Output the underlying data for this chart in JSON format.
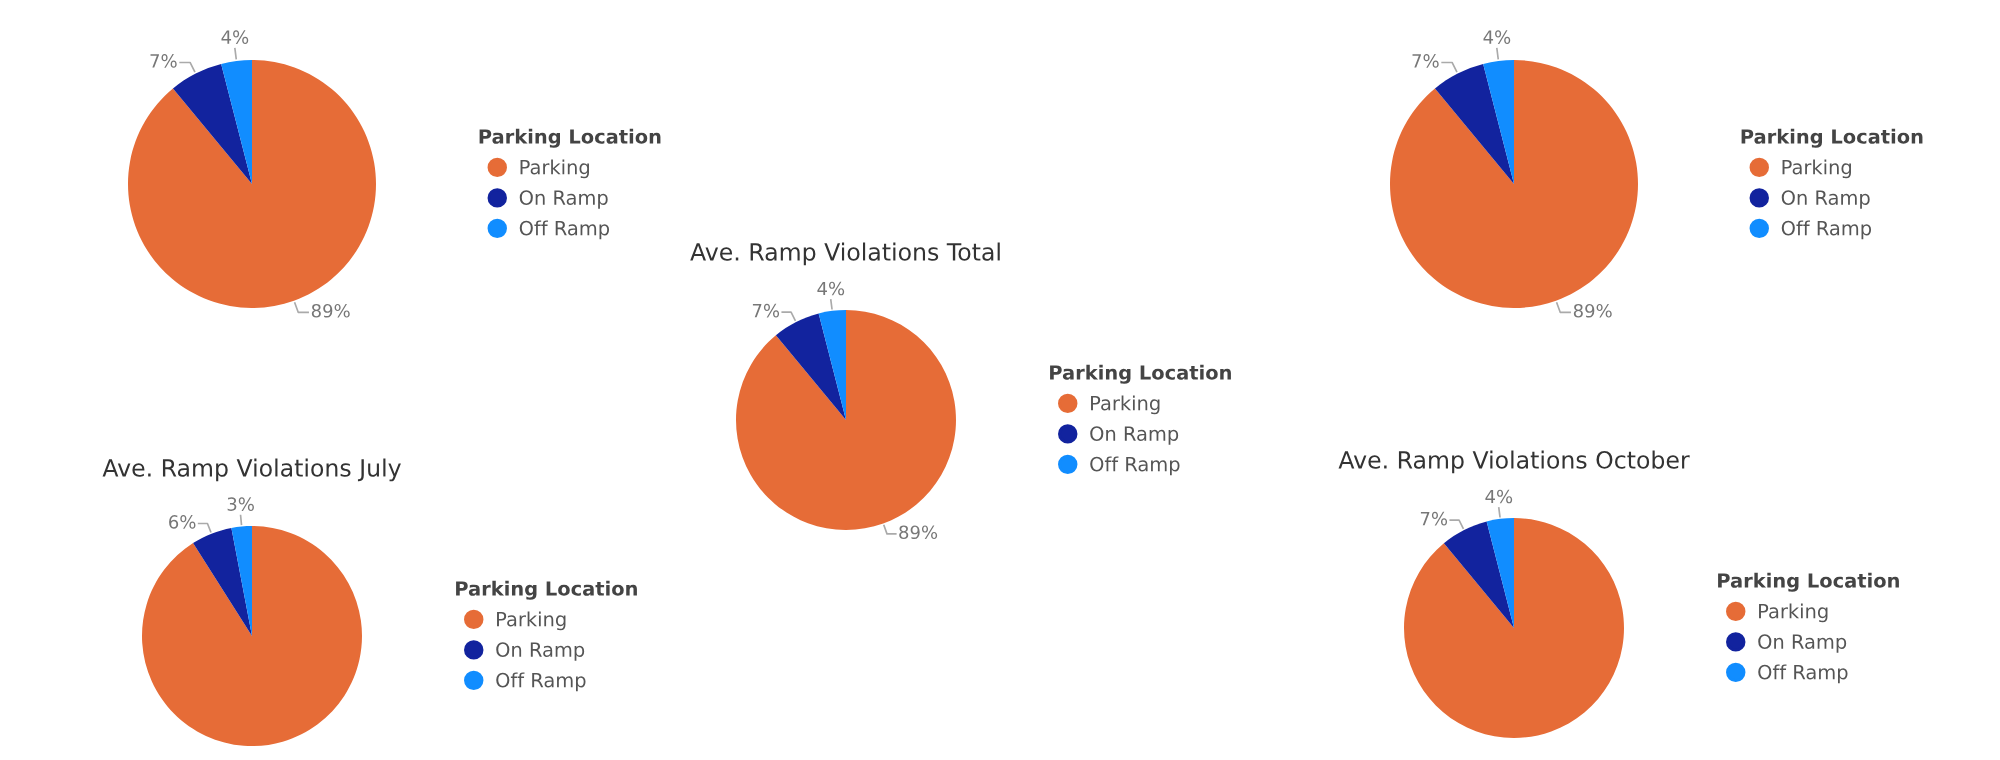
{
  "chart_data": [
    {
      "type": "pie",
      "categories": [
        "Parking",
        "On Ramp",
        "Off Ramp"
      ],
      "values": [
        89,
        7,
        4
      ],
      "colors": [
        "#e66c37",
        "#12239e",
        "#118dff"
      ],
      "value_labels": [
        "89%",
        "7%",
        "4%"
      ],
      "legend": "right",
      "legend_title": "Parking Location"
    },
    {
      "type": "pie",
      "categories": [
        "Parking",
        "On Ramp",
        "Off Ramp"
      ],
      "values": [
        89,
        7,
        4
      ],
      "colors": [
        "#e66c37",
        "#12239e",
        "#118dff"
      ],
      "value_labels": [
        "89%",
        "7%",
        "4%"
      ],
      "legend": "right",
      "legend_title": "Parking Location"
    },
    {
      "type": "pie",
      "title": "Ave. Ramp Violations Total",
      "categories": [
        "Parking",
        "On Ramp",
        "Off Ramp"
      ],
      "values": [
        89,
        7,
        4
      ],
      "colors": [
        "#e66c37",
        "#12239e",
        "#118dff"
      ],
      "value_labels": [
        "89%",
        "7%",
        "4%"
      ],
      "legend": "right",
      "legend_title": "Parking Location"
    },
    {
      "type": "pie",
      "title": "Ave. Ramp Violations July",
      "categories": [
        "Parking",
        "On Ramp",
        "Off Ramp"
      ],
      "values": [
        91,
        6,
        3
      ],
      "colors": [
        "#e66c37",
        "#12239e",
        "#118dff"
      ],
      "value_labels": [
        null,
        "6%",
        "3%"
      ],
      "legend": "right",
      "legend_title": "Parking Location"
    },
    {
      "type": "pie",
      "title": "Ave. Ramp Violations October",
      "categories": [
        "Parking",
        "On Ramp",
        "Off Ramp"
      ],
      "values": [
        89,
        7,
        4
      ],
      "colors": [
        "#e66c37",
        "#12239e",
        "#118dff"
      ],
      "value_labels": [
        null,
        "7%",
        "4%"
      ],
      "legend": "right",
      "legend_title": "Parking Location"
    }
  ]
}
